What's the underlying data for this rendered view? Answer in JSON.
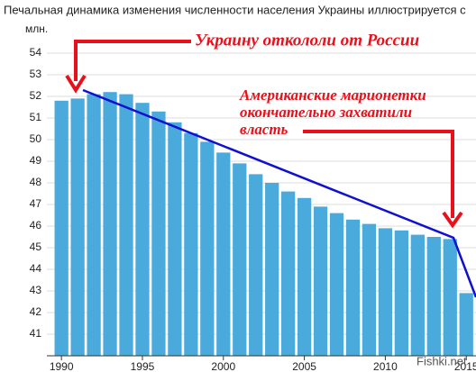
{
  "chart_data": {
    "type": "bar",
    "title": "Печальная динамика изменения численности населения Украины иллюстрируется с",
    "y_label": "млн.",
    "x": [
      1990,
      1991,
      1992,
      1993,
      1994,
      1995,
      1996,
      1997,
      1998,
      1999,
      2000,
      2001,
      2002,
      2003,
      2004,
      2005,
      2006,
      2007,
      2008,
      2009,
      2010,
      2011,
      2012,
      2013,
      2014,
      2015
    ],
    "values": [
      51.8,
      51.9,
      52.1,
      52.2,
      52.1,
      51.7,
      51.3,
      50.8,
      50.3,
      49.9,
      49.4,
      48.9,
      48.4,
      48.0,
      47.6,
      47.3,
      46.9,
      46.6,
      46.3,
      46.1,
      45.9,
      45.8,
      45.6,
      45.5,
      45.4,
      42.9
    ],
    "color": "#4aaadc",
    "xlim": [
      1989.1,
      2015.6
    ],
    "xticks": [
      1990,
      1995,
      2000,
      2005,
      2010,
      2015
    ],
    "ylim": [
      40,
      54.5
    ],
    "yticks": [
      41,
      42,
      43,
      44,
      45,
      46,
      47,
      48,
      49,
      50,
      51,
      52,
      53,
      54
    ],
    "grid": true,
    "annotations": [
      [
        "Украину откололи от России"
      ],
      [
        "Американские марионетки",
        "окончательно захватили",
        "власть"
      ]
    ],
    "watermark": "Fishki.net"
  }
}
